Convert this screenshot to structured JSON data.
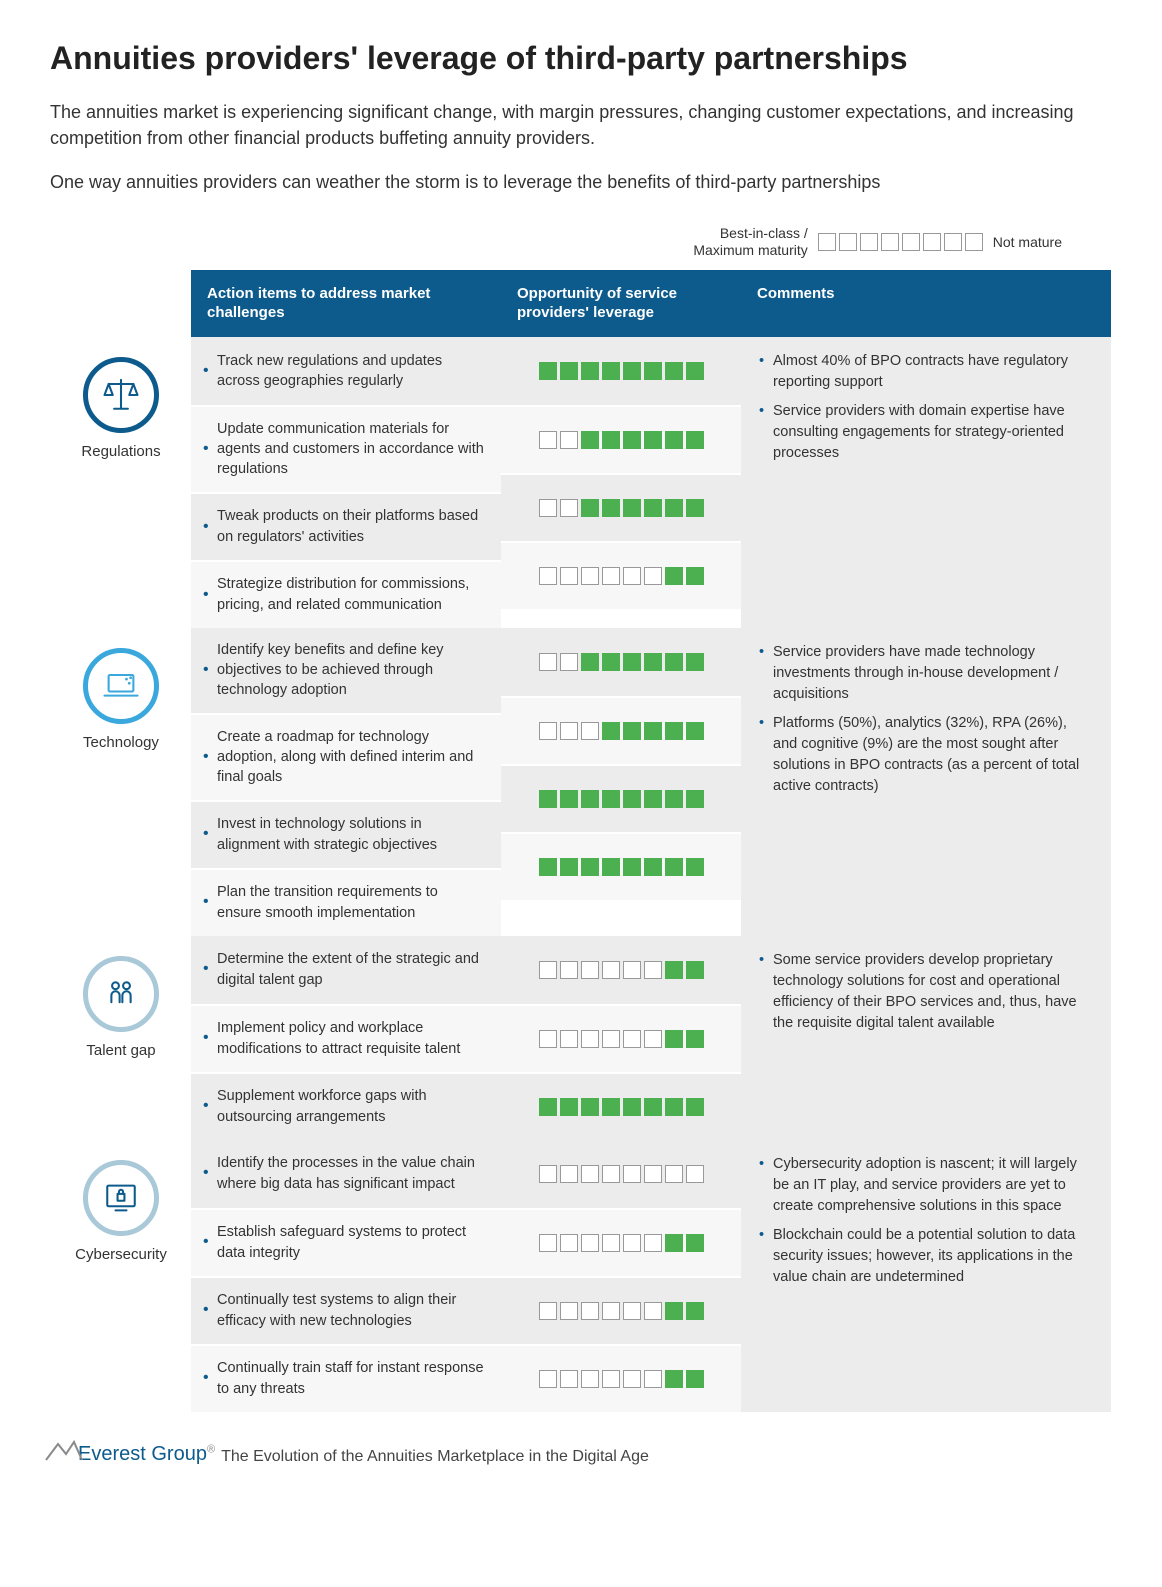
{
  "title": "Annuities providers' leverage of third-party partnerships",
  "intro": [
    "The annuities market is experiencing significant change, with margin pressures, changing customer expectations, and increasing competition from other financial products buffeting annuity providers.",
    "One way annuities providers can weather the storm is to leverage the benefits of third-party partnerships"
  ],
  "legend": {
    "left": "Best-in-class /\nMaximum maturity",
    "right": "Not mature",
    "total_cells": 8,
    "filled_cells": 0,
    "cell_border": "#999999",
    "cell_empty_bg": "#ffffff",
    "cell_filled_bg": "#4caf50"
  },
  "columns": {
    "action": "Action items to address market challenges",
    "opportunity": "Opportunity of service providers' leverage",
    "comments": "Comments"
  },
  "maturity_scale": {
    "max": 8,
    "fill_color": "#4caf50",
    "empty_border": "#999999"
  },
  "row_bg": {
    "a": "#ececec",
    "b": "#f7f7f7"
  },
  "header_bg": "#0d5b8c",
  "categories": [
    {
      "key": "regulations",
      "label": "Regulations",
      "icon": "scales",
      "icon_color": "#0d5b8c",
      "ring_color": "#0d5b8c",
      "rows": [
        {
          "action": "Track new regulations and updates across geographies regularly",
          "maturity": 8
        },
        {
          "action": "Update communication materials for agents and customers in accordance with regulations",
          "maturity": 6
        },
        {
          "action": "Tweak products on their platforms based on regulators' activities",
          "maturity": 6
        },
        {
          "action": "Strategize distribution for commissions, pricing, and related communication",
          "maturity": 2
        }
      ],
      "comments": [
        "Almost 40% of BPO contracts have regulatory reporting support",
        "Service providers with domain expertise have consulting engagements for strategy-oriented processes"
      ]
    },
    {
      "key": "technology",
      "label": "Technology",
      "icon": "laptop",
      "icon_color": "#3aa7dd",
      "ring_color": "#3aa7dd",
      "rows": [
        {
          "action": "Identify key benefits and define key objectives to be achieved through technology adoption",
          "maturity": 6
        },
        {
          "action": "Create a roadmap for technology adoption, along with defined interim and final goals",
          "maturity": 5
        },
        {
          "action": "Invest in technology solutions in alignment with strategic objectives",
          "maturity": 8
        },
        {
          "action": " Plan the transition requirements to ensure smooth implementation",
          "maturity": 8
        }
      ],
      "comments": [
        "Service providers have made technology investments through in-house development / acquisitions",
        "Platforms (50%), analytics (32%), RPA (26%), and cognitive (9%) are the most sought after solutions in BPO contracts (as a percent of total active contracts)"
      ]
    },
    {
      "key": "talent",
      "label": "Talent gap",
      "icon": "people",
      "icon_color": "#0d5b8c",
      "ring_color": "#a9c8d8",
      "rows": [
        {
          "action": "Determine the extent of the strategic and digital talent gap",
          "maturity": 2
        },
        {
          "action": "Implement policy and workplace modifications to attract requisite talent",
          "maturity": 2
        },
        {
          "action": " Supplement workforce gaps with outsourcing arrangements",
          "maturity": 8
        }
      ],
      "comments": [
        "Some service providers develop proprietary technology solutions for cost and operational efficiency of their BPO services and, thus, have the requisite digital talent available"
      ]
    },
    {
      "key": "cyber",
      "label": "Cybersecurity",
      "icon": "lock-screen",
      "icon_color": "#0d5b8c",
      "ring_color": "#a9c8d8",
      "rows": [
        {
          "action": "Identify the processes in the value chain where big data has significant impact",
          "maturity": 0
        },
        {
          "action": "Establish safeguard systems to protect data integrity",
          "maturity": 2
        },
        {
          "action": " Continually test systems to align their efficacy with new technologies",
          "maturity": 2
        },
        {
          "action": " Continually train staff for instant response to any threats",
          "maturity": 2
        }
      ],
      "comments": [
        "Cybersecurity adoption is nascent; it will largely be an IT play, and service providers are yet to create comprehensive solutions in this space",
        "Blockchain could be a potential solution to data security issues; however, its applications in the value chain are undetermined"
      ]
    }
  ],
  "footer": {
    "brand": "Everest Group",
    "tagline": "The Evolution of the Annuities Marketplace in the Digital Age",
    "brand_color": "#0d5b8c",
    "peak_color": "#8a8a8a"
  }
}
